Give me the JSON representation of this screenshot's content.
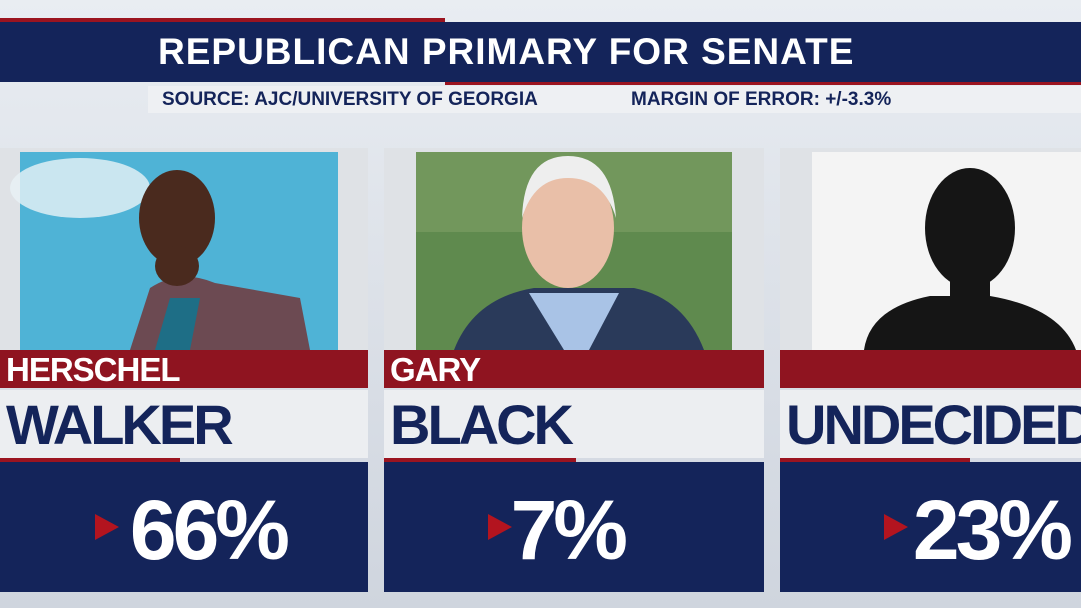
{
  "header": {
    "title": "REPUBLICAN PRIMARY FOR SENATE",
    "source": "SOURCE: AJC/UNIVERSITY OF GEORGIA",
    "margin": "MARGIN OF ERROR: +/-3.3%"
  },
  "candidates": [
    {
      "first": "HERSCHEL",
      "last": "WALKER",
      "percent": "66%"
    },
    {
      "first": "GARY",
      "last": "BLACK",
      "percent": "7%"
    },
    {
      "first": "",
      "last": "UNDECIDED",
      "percent": "23%"
    }
  ]
}
